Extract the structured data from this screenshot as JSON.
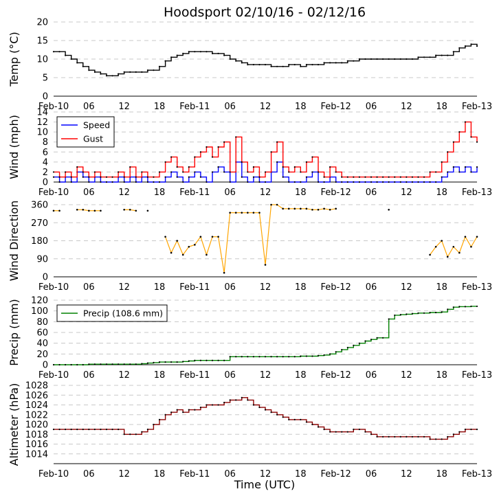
{
  "title": "Hoodsport 02/10/16 - 02/12/16",
  "xlabel": "Time (UTC)",
  "x_ticks": [
    "Feb-10",
    "06",
    "12",
    "18",
    "Feb-11",
    "06",
    "12",
    "18",
    "Feb-12",
    "06",
    "12",
    "18",
    "Feb-13"
  ],
  "chart_data": [
    {
      "type": "line",
      "ylabel": "Temp (°C)",
      "ylim": [
        0,
        20
      ],
      "yticks": [
        0,
        5,
        10,
        15,
        20
      ],
      "grid": true,
      "series": [
        {
          "color": "#000000",
          "x_hours": [
            0,
            1,
            2,
            3,
            4,
            5,
            6,
            7,
            8,
            9,
            10,
            11,
            12,
            13,
            14,
            15,
            16,
            17,
            18,
            19,
            20,
            21,
            22,
            23,
            24,
            25,
            26,
            27,
            28,
            29,
            30,
            31,
            32,
            33,
            34,
            35,
            36,
            37,
            38,
            39,
            40,
            41,
            42,
            43,
            44,
            45,
            46,
            47,
            48,
            49,
            50,
            51,
            52,
            53,
            54,
            55,
            56,
            57,
            58,
            59,
            60,
            61,
            62,
            63,
            64,
            65,
            66,
            67,
            68,
            69,
            70,
            71,
            72
          ],
          "values": [
            12,
            12,
            11,
            10,
            9,
            8,
            7,
            6.5,
            6,
            5.5,
            5.5,
            6,
            6.5,
            6.5,
            6.5,
            6.5,
            7,
            7,
            8,
            9.5,
            10.5,
            11,
            11.5,
            12,
            12,
            12,
            12,
            11.5,
            11.5,
            11,
            10,
            9.5,
            9,
            8.5,
            8.5,
            8.5,
            8.5,
            8,
            8,
            8,
            8.5,
            8.5,
            8,
            8.5,
            8.5,
            8.5,
            9,
            9,
            9,
            9,
            9.5,
            9.5,
            10,
            10,
            10,
            10,
            10,
            10,
            10,
            10,
            10,
            10,
            10.5,
            10.5,
            10.5,
            11,
            11,
            11,
            12,
            13,
            13.5,
            14,
            13.5
          ]
        }
      ]
    },
    {
      "type": "line",
      "ylabel": "Wind (mph)",
      "ylim": [
        0,
        14
      ],
      "yticks": [
        0,
        2,
        4,
        6,
        8,
        10,
        12,
        14
      ],
      "grid": true,
      "legend": {
        "position": "top-left"
      },
      "series": [
        {
          "name": "Speed",
          "color": "#0000ff",
          "x_hours": [
            0,
            1,
            2,
            3,
            4,
            5,
            6,
            7,
            8,
            9,
            10,
            11,
            12,
            13,
            14,
            15,
            16,
            17,
            18,
            19,
            20,
            21,
            22,
            23,
            24,
            25,
            26,
            27,
            28,
            29,
            30,
            31,
            32,
            33,
            34,
            35,
            36,
            37,
            38,
            39,
            40,
            41,
            42,
            43,
            44,
            45,
            46,
            47,
            48,
            49,
            50,
            51,
            52,
            53,
            54,
            55,
            56,
            57,
            58,
            59,
            60,
            61,
            62,
            63,
            64,
            65,
            66,
            67,
            68,
            69,
            70,
            71,
            72
          ],
          "values": [
            1,
            0,
            1,
            0,
            2,
            1,
            0,
            1,
            0,
            0,
            0,
            1,
            0,
            1,
            0,
            1,
            0,
            0,
            0,
            1,
            2,
            1,
            0,
            1,
            2,
            1,
            0,
            2,
            3,
            2,
            0,
            4,
            1,
            0,
            1,
            0,
            0,
            2,
            4,
            1,
            0,
            0,
            0,
            1,
            2,
            0,
            0,
            1,
            0,
            0,
            0,
            0,
            0,
            0,
            0,
            0,
            0,
            0,
            0,
            0,
            0,
            0,
            0,
            0,
            0,
            0,
            1,
            2,
            3,
            2,
            3,
            2,
            3
          ]
        },
        {
          "name": "Gust",
          "color": "#ff0000",
          "x_hours": [
            0,
            1,
            2,
            3,
            4,
            5,
            6,
            7,
            8,
            9,
            10,
            11,
            12,
            13,
            14,
            15,
            16,
            17,
            18,
            19,
            20,
            21,
            22,
            23,
            24,
            25,
            26,
            27,
            28,
            29,
            30,
            31,
            32,
            33,
            34,
            35,
            36,
            37,
            38,
            39,
            40,
            41,
            42,
            43,
            44,
            45,
            46,
            47,
            48,
            49,
            50,
            51,
            52,
            53,
            54,
            55,
            56,
            57,
            58,
            59,
            60,
            61,
            62,
            63,
            64,
            65,
            66,
            67,
            68,
            69,
            70,
            71,
            72
          ],
          "values": [
            2,
            1,
            2,
            1,
            3,
            2,
            1,
            2,
            1,
            1,
            1,
            2,
            1,
            3,
            1,
            2,
            1,
            1,
            2,
            4,
            5,
            3,
            2,
            3,
            5,
            6,
            7,
            5,
            7,
            8,
            2,
            9,
            4,
            2,
            3,
            1,
            2,
            6,
            8,
            3,
            2,
            3,
            2,
            4,
            5,
            2,
            1,
            3,
            2,
            1,
            1,
            1,
            1,
            1,
            1,
            1,
            1,
            1,
            1,
            1,
            1,
            1,
            1,
            1,
            2,
            2,
            4,
            6,
            8,
            10,
            12,
            9,
            8
          ]
        }
      ]
    },
    {
      "type": "scatter",
      "ylabel": "Wind Direction",
      "ylim": [
        0,
        360
      ],
      "yticks": [
        0,
        90,
        180,
        270,
        360
      ],
      "grid": true,
      "series": [
        {
          "color": "#ffa500",
          "x_hours": [
            0,
            1,
            4,
            5,
            6,
            7,
            8,
            12,
            13,
            14,
            16,
            19,
            20,
            21,
            22,
            23,
            24,
            25,
            26,
            27,
            28,
            29,
            30,
            31,
            32,
            33,
            34,
            35,
            36,
            37,
            38,
            39,
            40,
            41,
            42,
            43,
            44,
            45,
            46,
            47,
            48,
            57,
            64,
            65,
            66,
            67,
            68,
            69,
            70,
            71,
            72
          ],
          "values": [
            330,
            330,
            335,
            335,
            330,
            330,
            330,
            335,
            335,
            330,
            330,
            200,
            120,
            180,
            110,
            150,
            160,
            200,
            110,
            200,
            200,
            20,
            320,
            320,
            320,
            320,
            320,
            320,
            60,
            360,
            360,
            340,
            340,
            340,
            340,
            340,
            335,
            335,
            340,
            335,
            340,
            335,
            110,
            150,
            180,
            100,
            150,
            120,
            200,
            150,
            200
          ]
        }
      ]
    },
    {
      "type": "line",
      "ylabel": "Precip (mm)",
      "ylim": [
        0,
        120
      ],
      "yticks": [
        0,
        20,
        40,
        60,
        80,
        100,
        120
      ],
      "grid": true,
      "legend": {
        "position": "top-left"
      },
      "series": [
        {
          "name": "Precip (108.6 mm)",
          "color": "#008000",
          "x_hours": [
            0,
            1,
            2,
            3,
            4,
            5,
            6,
            7,
            8,
            9,
            10,
            11,
            12,
            13,
            14,
            15,
            16,
            17,
            18,
            19,
            20,
            21,
            22,
            23,
            24,
            25,
            26,
            27,
            28,
            29,
            30,
            31,
            32,
            33,
            34,
            35,
            36,
            37,
            38,
            39,
            40,
            41,
            42,
            43,
            44,
            45,
            46,
            47,
            48,
            49,
            50,
            51,
            52,
            53,
            54,
            55,
            56,
            57,
            58,
            59,
            60,
            61,
            62,
            63,
            64,
            65,
            66,
            67,
            68,
            69,
            70,
            71,
            72
          ],
          "values": [
            0,
            0,
            0,
            0,
            0,
            0,
            1,
            1,
            1,
            1,
            1,
            1,
            1,
            1,
            1,
            2,
            3,
            4,
            5,
            5,
            5,
            5,
            6,
            7,
            8,
            8,
            8,
            8,
            8,
            8,
            15,
            15,
            15,
            15,
            15,
            15,
            15,
            15,
            15,
            15,
            15,
            15,
            16,
            16,
            16,
            17,
            18,
            20,
            24,
            28,
            32,
            36,
            40,
            44,
            47,
            50,
            50,
            85,
            92,
            93,
            94,
            95,
            96,
            96,
            97,
            97,
            98,
            103,
            107,
            108,
            108,
            108.6,
            108.6
          ]
        }
      ]
    },
    {
      "type": "line",
      "ylabel": "Altimeter (hPa)",
      "ylim": [
        1012,
        1028
      ],
      "yticks": [
        1014,
        1016,
        1018,
        1020,
        1022,
        1024,
        1026,
        1028
      ],
      "grid": true,
      "series": [
        {
          "color": "#8b0000",
          "x_hours": [
            0,
            1,
            2,
            3,
            4,
            5,
            6,
            7,
            8,
            9,
            10,
            11,
            12,
            13,
            14,
            15,
            16,
            17,
            18,
            19,
            20,
            21,
            22,
            23,
            24,
            25,
            26,
            27,
            28,
            29,
            30,
            31,
            32,
            33,
            34,
            35,
            36,
            37,
            38,
            39,
            40,
            41,
            42,
            43,
            44,
            45,
            46,
            47,
            48,
            49,
            50,
            51,
            52,
            53,
            54,
            55,
            56,
            57,
            58,
            59,
            60,
            61,
            62,
            63,
            64,
            65,
            66,
            67,
            68,
            69,
            70,
            71,
            72
          ],
          "values": [
            1019,
            1019,
            1019,
            1019,
            1019,
            1019,
            1019,
            1019,
            1019,
            1019,
            1019,
            1019,
            1018,
            1018,
            1018,
            1018.5,
            1019,
            1020,
            1021,
            1022,
            1022.5,
            1023,
            1022.5,
            1023,
            1023,
            1023.5,
            1024,
            1024,
            1024,
            1024.5,
            1025,
            1025,
            1025.5,
            1025,
            1024,
            1023.5,
            1023,
            1022.5,
            1022,
            1021.5,
            1021,
            1021,
            1021,
            1020.5,
            1020,
            1019.5,
            1019,
            1018.5,
            1018.5,
            1018.5,
            1018.5,
            1019,
            1019,
            1018.5,
            1018,
            1017.5,
            1017.5,
            1017.5,
            1017.5,
            1017.5,
            1017.5,
            1017.5,
            1017.5,
            1017.5,
            1017,
            1017,
            1017,
            1017.5,
            1018,
            1018.5,
            1019,
            1019,
            1019
          ]
        }
      ]
    }
  ]
}
